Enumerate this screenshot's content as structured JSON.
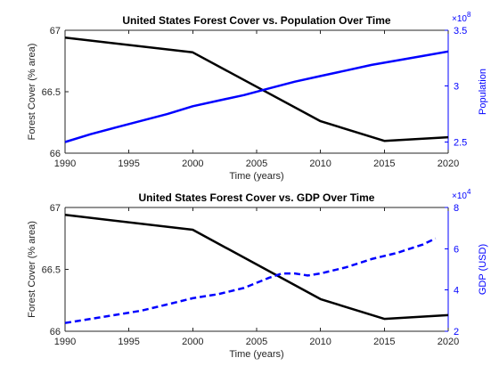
{
  "chart_data": [
    {
      "type": "line",
      "title": "United States Forest Cover vs. Population Over Time",
      "xlabel": "Time (years)",
      "ylabel_left": "Forest Cover (% area)",
      "ylabel_right": "Population",
      "right_axis_exponent": "×10^8",
      "xlim": [
        1990,
        2020
      ],
      "ylim_left": [
        66,
        67
      ],
      "ylim_right": [
        2.4,
        3.5
      ],
      "x_ticks": [
        "1990",
        "1995",
        "2000",
        "2005",
        "2010",
        "2015",
        "2020"
      ],
      "y_left_ticks": [
        "66",
        "66.5",
        "67"
      ],
      "y_right_ticks": [
        "2.5",
        "3",
        "3.5"
      ],
      "colors": {
        "left": "#000000",
        "right": "#0000ff"
      },
      "series": [
        {
          "axis": "left",
          "style": "solid",
          "x": [
            1990,
            2000,
            2010,
            2015,
            2020
          ],
          "y": [
            66.94,
            66.82,
            66.26,
            66.1,
            66.13
          ]
        },
        {
          "axis": "right",
          "style": "solid",
          "x": [
            1990,
            1992,
            1994,
            1996,
            1998,
            2000,
            2002,
            2004,
            2006,
            2008,
            2010,
            2012,
            2014,
            2016,
            2018,
            2020
          ],
          "y": [
            2.5,
            2.57,
            2.63,
            2.69,
            2.75,
            2.82,
            2.87,
            2.92,
            2.98,
            3.04,
            3.09,
            3.14,
            3.19,
            3.23,
            3.27,
            3.31
          ]
        }
      ]
    },
    {
      "type": "line",
      "title": "United States Forest Cover vs. GDP Over Time",
      "xlabel": "Time (years)",
      "ylabel_left": "Forest Cover (% area)",
      "ylabel_right": "GDP (USD)",
      "right_axis_exponent": "×10^4",
      "xlim": [
        1990,
        2020
      ],
      "ylim_left": [
        66,
        67
      ],
      "ylim_right": [
        2,
        8
      ],
      "x_ticks": [
        "1990",
        "1995",
        "2000",
        "2005",
        "2010",
        "2015",
        "2020"
      ],
      "y_left_ticks": [
        "66",
        "66.5",
        "67"
      ],
      "y_right_ticks": [
        "2",
        "4",
        "6",
        "8"
      ],
      "colors": {
        "left": "#000000",
        "right": "#0000ff"
      },
      "series": [
        {
          "axis": "left",
          "style": "solid",
          "x": [
            1990,
            2000,
            2010,
            2015,
            2020
          ],
          "y": [
            66.94,
            66.82,
            66.26,
            66.1,
            66.13
          ]
        },
        {
          "axis": "right",
          "style": "dashed",
          "x": [
            1990,
            1992,
            1994,
            1996,
            1998,
            2000,
            2002,
            2004,
            2006,
            2007,
            2008,
            2009,
            2010,
            2012,
            2014,
            2016,
            2017,
            2018,
            2019
          ],
          "y": [
            2.4,
            2.6,
            2.8,
            3.0,
            3.3,
            3.6,
            3.8,
            4.1,
            4.6,
            4.8,
            4.8,
            4.7,
            4.8,
            5.1,
            5.5,
            5.8,
            6.0,
            6.2,
            6.5
          ]
        }
      ]
    }
  ]
}
